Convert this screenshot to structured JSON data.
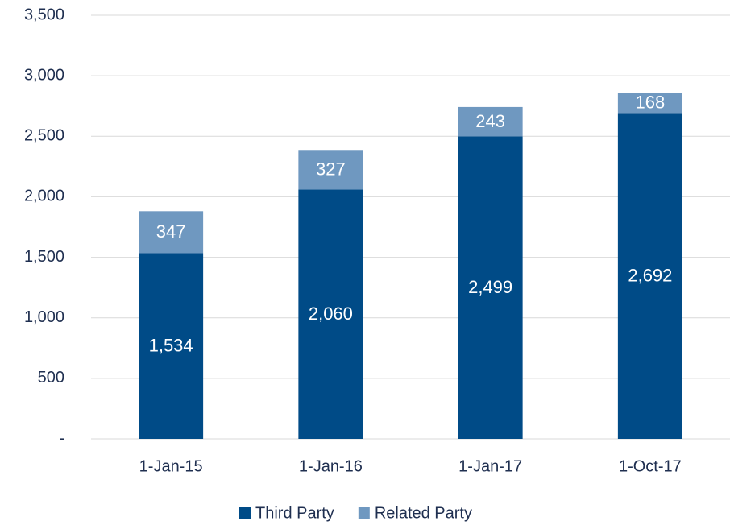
{
  "chart_data": {
    "type": "stacked_bar",
    "categories": [
      "1-Jan-15",
      "1-Jan-16",
      "1-Jan-17",
      "1-Oct-17"
    ],
    "series": [
      {
        "name": "Third Party",
        "color": "#004b87",
        "values": [
          1534,
          2060,
          2499,
          2692
        ],
        "value_labels": [
          "1,534",
          "2,060",
          "2,499",
          "2,692"
        ]
      },
      {
        "name": "Related Party",
        "color": "#6f98c0",
        "values": [
          347,
          327,
          243,
          168
        ]
      }
    ],
    "ylim": [
      0,
      3500
    ],
    "yticks": [
      {
        "value": 0,
        "label": "-"
      },
      500,
      {
        "value": 1000,
        "label": "1,000"
      },
      {
        "value": 1500,
        "label": "1,500"
      },
      {
        "value": 2000,
        "label": "2,000"
      },
      {
        "value": 2500,
        "label": "2,500"
      },
      {
        "value": 3000,
        "label": "3,000"
      },
      {
        "value": 3500,
        "label": "3,500"
      }
    ],
    "grid": true,
    "legend": "bottom"
  }
}
